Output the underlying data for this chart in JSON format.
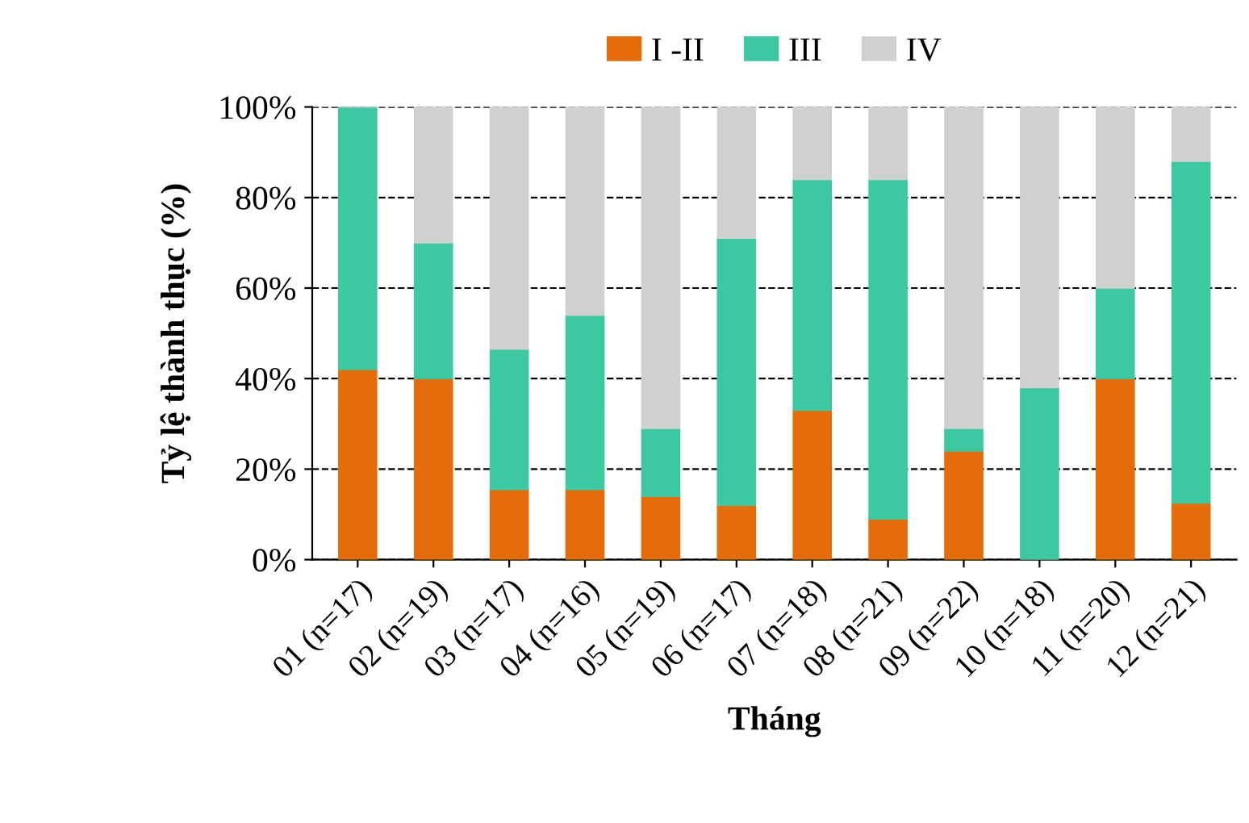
{
  "chart_data": {
    "type": "bar",
    "stacked": true,
    "categories": [
      "01 (n=17)",
      "02 (n=19)",
      "03 (n=17)",
      "04 (n=16)",
      "05 (n=19)",
      "06 (n=17)",
      "07 (n=18)",
      "08 (n=21)",
      "09 (n=22)",
      "10 (n=18)",
      "11 (n=20)",
      "12 (n=21)"
    ],
    "series": [
      {
        "name": "I -II",
        "color": "#e46c0a",
        "values": [
          42,
          40,
          15.5,
          15.5,
          14,
          12,
          33,
          9,
          24,
          0,
          40,
          12.5
        ]
      },
      {
        "name": "III",
        "color": "#3cc8a0",
        "values": [
          58,
          30,
          31,
          38.5,
          15,
          59,
          51,
          75,
          5,
          38,
          20,
          75.5
        ]
      },
      {
        "name": "IV",
        "color": "#d0d0d0",
        "values": [
          0,
          30,
          53.5,
          46,
          71,
          29,
          16,
          16,
          71,
          62,
          40,
          12
        ]
      }
    ],
    "ylim": [
      0,
      100
    ],
    "yticks": [
      {
        "value": 0,
        "label": "0%"
      },
      {
        "value": 20,
        "label": "20%"
      },
      {
        "value": 40,
        "label": "40%"
      },
      {
        "value": 60,
        "label": "60%"
      },
      {
        "value": 80,
        "label": "80%"
      },
      {
        "value": 100,
        "label": "100%"
      }
    ],
    "xlabel": "Tháng",
    "ylabel": "Tỷ lệ thành thục (%)",
    "grid": "y",
    "legend": "top"
  }
}
